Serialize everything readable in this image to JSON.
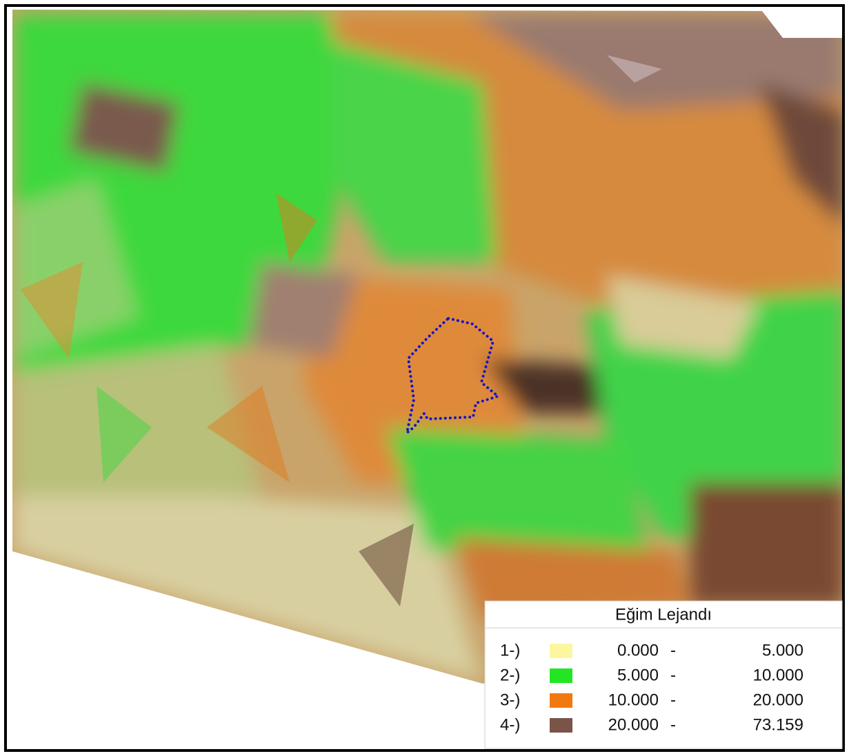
{
  "legend": {
    "title": "Eğim Lejandı",
    "items": [
      {
        "label": "1-)",
        "color": "#fbf7a0",
        "from": "0.000",
        "sep": "-",
        "to": "5.000"
      },
      {
        "label": "2-)",
        "color": "#22e622",
        "from": "5.000",
        "sep": "-",
        "to": "10.000"
      },
      {
        "label": "3-)",
        "color": "#f07a10",
        "from": "10.000",
        "sep": "-",
        "to": "20.000"
      },
      {
        "label": "4-)",
        "color": "#7a5448",
        "from": "20.000",
        "sep": "-",
        "to": "73.159"
      }
    ]
  }
}
